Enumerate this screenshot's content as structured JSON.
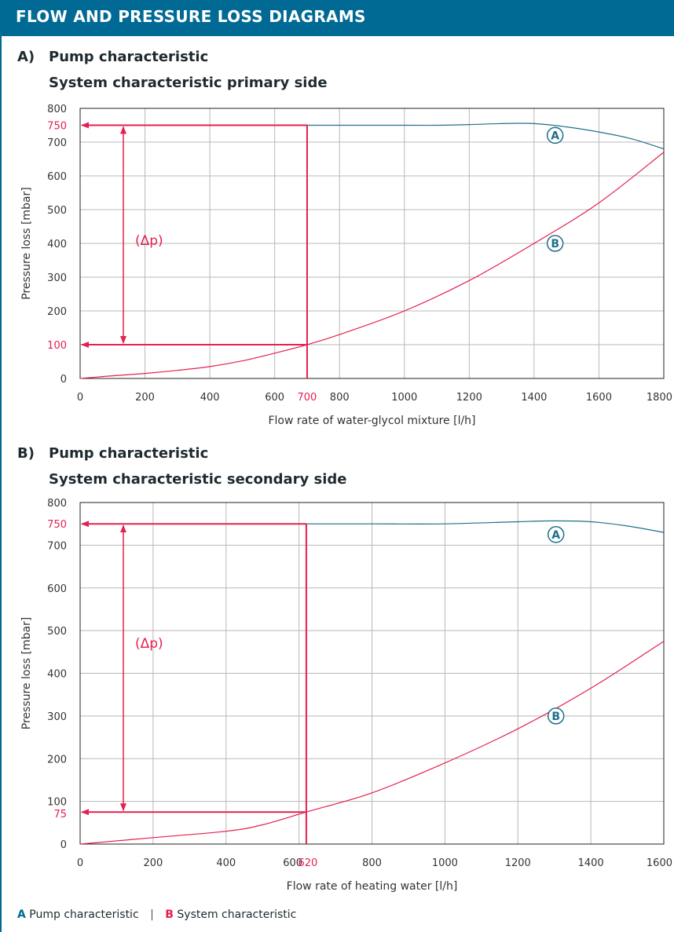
{
  "header": {
    "title": "FLOW AND PRESSURE LOSS DIAGRAMS"
  },
  "legend": {
    "a_letter": "A",
    "a_label": "Pump characteristic",
    "separator": "|",
    "b_letter": "B",
    "b_label": "System characteristic"
  },
  "colors": {
    "header": "#006a94",
    "pump_curve": "#1f6f8b",
    "system_curve": "#e5204e",
    "grid": "#b8b8b8"
  },
  "chart_data": [
    {
      "type": "line",
      "section_letter": "A)",
      "title": "Pump characteristic",
      "subtitle": "System characteristic primary side",
      "xlabel": "Flow rate of water-glycol mixture [l/h]",
      "ylabel": "Pressure loss [mbar]",
      "xlim": [
        0,
        1800
      ],
      "ylim": [
        0,
        800
      ],
      "xticks": [
        0,
        200,
        400,
        600,
        800,
        1000,
        1200,
        1400,
        1600,
        1800
      ],
      "yticks": [
        0,
        100,
        200,
        300,
        400,
        500,
        600,
        700,
        800
      ],
      "grid": true,
      "series": [
        {
          "name": "A",
          "x": [
            700,
            800,
            1000,
            1100,
            1200,
            1300,
            1400,
            1500,
            1600,
            1700,
            1800
          ],
          "y": [
            750,
            750,
            750,
            750,
            752,
            755,
            755,
            745,
            730,
            710,
            680
          ]
        },
        {
          "name": "B",
          "x": [
            0,
            100,
            200,
            300,
            400,
            500,
            600,
            700,
            800,
            1000,
            1200,
            1400,
            1600,
            1800
          ],
          "y": [
            0,
            8,
            15,
            24,
            35,
            52,
            75,
            100,
            130,
            200,
            290,
            400,
            520,
            670
          ]
        }
      ],
      "operating_point": {
        "x": 700,
        "y_low": 100,
        "y_high": 750
      },
      "highlight": {
        "x_label": "700",
        "y_high_label": "750",
        "y_low_label": "100",
        "delta_label": "(Δp)"
      },
      "curve_labels": [
        {
          "text": "A",
          "x": 1460,
          "y": 720
        },
        {
          "text": "B",
          "x": 1460,
          "y": 400
        }
      ]
    },
    {
      "type": "line",
      "section_letter": "B)",
      "title": "Pump characteristic",
      "subtitle": "System characteristic secondary side",
      "xlabel": "Flow rate of heating water [l/h]",
      "ylabel": "Pressure loss [mbar]",
      "xlim": [
        0,
        1600
      ],
      "ylim": [
        0,
        800
      ],
      "xticks": [
        0,
        200,
        400,
        600,
        800,
        1000,
        1200,
        1400,
        1600
      ],
      "yticks": [
        0,
        100,
        200,
        300,
        400,
        500,
        600,
        700,
        800
      ],
      "grid": true,
      "series": [
        {
          "name": "A",
          "x": [
            620,
            800,
            1000,
            1200,
            1300,
            1400,
            1500,
            1600
          ],
          "y": [
            750,
            750,
            750,
            755,
            757,
            755,
            745,
            730
          ]
        },
        {
          "name": "B",
          "x": [
            0,
            200,
            400,
            500,
            620,
            800,
            1000,
            1200,
            1400,
            1600
          ],
          "y": [
            0,
            15,
            30,
            45,
            75,
            120,
            190,
            270,
            365,
            475
          ]
        }
      ],
      "operating_point": {
        "x": 620,
        "y_low": 75,
        "y_high": 750
      },
      "highlight": {
        "x_label": "620",
        "y_high_label": "750",
        "y_low_label": "75",
        "delta_label": "(Δp)"
      },
      "curve_labels": [
        {
          "text": "A",
          "x": 1300,
          "y": 725
        },
        {
          "text": "B",
          "x": 1300,
          "y": 300
        }
      ]
    }
  ]
}
